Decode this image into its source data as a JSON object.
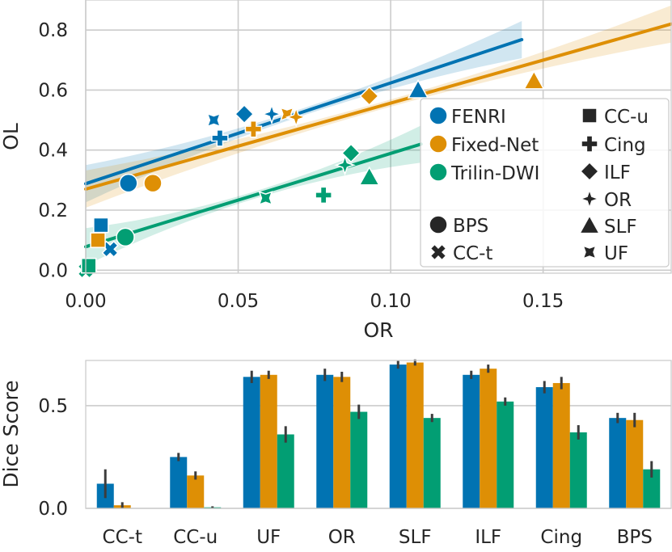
{
  "colors": {
    "fenri": "#0173b2",
    "fixed_net": "#de8f05",
    "trilin_dwi": "#029e73",
    "grid": "#cccccc",
    "text": "#262626"
  },
  "chart_data": [
    {
      "type": "scatter",
      "xlabel": "OR",
      "ylabel": "OL",
      "xlim": [
        0.0,
        0.192
      ],
      "ylim": [
        -0.01,
        0.9
      ],
      "xticks": [
        0.0,
        0.05,
        0.1,
        0.15
      ],
      "xtick_labels": [
        "0.00",
        "0.05",
        "0.10",
        "0.15"
      ],
      "yticks": [
        0.0,
        0.2,
        0.4,
        0.6,
        0.8
      ],
      "ytick_labels": [
        "0.0",
        "0.2",
        "0.4",
        "0.6",
        "0.8"
      ],
      "grid": true,
      "legend_position": "right",
      "method_legend": [
        "FENRI",
        "Fixed-Net",
        "Trilin-DWI"
      ],
      "tract_legend": [
        "CC-u",
        "Cing",
        "ILF",
        "OR",
        "SLF",
        "UF",
        "BPS",
        "CC-t"
      ],
      "regression_lines": [
        {
          "name": "FENRI",
          "x": [
            0.0,
            0.143
          ],
          "y": [
            0.288,
            0.768
          ]
        },
        {
          "name": "Fixed-Net",
          "x": [
            0.0,
            0.192
          ],
          "y": [
            0.27,
            0.82
          ]
        },
        {
          "name": "Trilin-DWI",
          "x": [
            0.0,
            0.11
          ],
          "y": [
            0.078,
            0.42
          ]
        }
      ],
      "series": [
        {
          "name": "FENRI",
          "points": [
            {
              "tract": "CC-t",
              "x": 0.008,
              "y": 0.07
            },
            {
              "tract": "CC-u",
              "x": 0.005,
              "y": 0.15
            },
            {
              "tract": "UF",
              "x": 0.042,
              "y": 0.5
            },
            {
              "tract": "OR",
              "x": 0.061,
              "y": 0.52
            },
            {
              "tract": "SLF",
              "x": 0.109,
              "y": 0.6
            },
            {
              "tract": "ILF",
              "x": 0.052,
              "y": 0.52
            },
            {
              "tract": "Cing",
              "x": 0.044,
              "y": 0.44
            },
            {
              "tract": "BPS",
              "x": 0.014,
              "y": 0.29
            }
          ]
        },
        {
          "name": "Fixed-Net",
          "points": [
            {
              "tract": "CC-t",
              "x": 0.001,
              "y": 0.01
            },
            {
              "tract": "CC-u",
              "x": 0.004,
              "y": 0.1
            },
            {
              "tract": "UF",
              "x": 0.066,
              "y": 0.52
            },
            {
              "tract": "OR",
              "x": 0.069,
              "y": 0.51
            },
            {
              "tract": "SLF",
              "x": 0.147,
              "y": 0.63
            },
            {
              "tract": "ILF",
              "x": 0.093,
              "y": 0.58
            },
            {
              "tract": "Cing",
              "x": 0.055,
              "y": 0.47
            },
            {
              "tract": "BPS",
              "x": 0.022,
              "y": 0.29
            }
          ]
        },
        {
          "name": "Trilin-DWI",
          "points": [
            {
              "tract": "CC-t",
              "x": 0.0,
              "y": 0.0
            },
            {
              "tract": "CC-u",
              "x": 0.001,
              "y": 0.015
            },
            {
              "tract": "UF",
              "x": 0.059,
              "y": 0.24
            },
            {
              "tract": "OR",
              "x": 0.085,
              "y": 0.35
            },
            {
              "tract": "SLF",
              "x": 0.093,
              "y": 0.31
            },
            {
              "tract": "ILF",
              "x": 0.087,
              "y": 0.39
            },
            {
              "tract": "Cing",
              "x": 0.078,
              "y": 0.25
            },
            {
              "tract": "BPS",
              "x": 0.013,
              "y": 0.11
            }
          ]
        }
      ]
    },
    {
      "type": "bar",
      "ylabel": "Dice Score",
      "xlabel": "",
      "ylim": [
        0.0,
        0.72
      ],
      "yticks": [
        0.0,
        0.5
      ],
      "ytick_labels": [
        "0.0",
        "0.5"
      ],
      "grid": true,
      "categories": [
        "CC-t",
        "CC-u",
        "UF",
        "OR",
        "SLF",
        "ILF",
        "Cing",
        "BPS"
      ],
      "series": [
        {
          "name": "FENRI",
          "values": [
            0.12,
            0.25,
            0.64,
            0.65,
            0.7,
            0.65,
            0.59,
            0.44
          ],
          "error": [
            0.07,
            0.02,
            0.03,
            0.03,
            0.02,
            0.02,
            0.03,
            0.025
          ]
        },
        {
          "name": "Fixed-Net",
          "values": [
            0.015,
            0.16,
            0.65,
            0.64,
            0.71,
            0.68,
            0.61,
            0.43
          ],
          "error": [
            0.015,
            0.02,
            0.02,
            0.025,
            0.015,
            0.02,
            0.03,
            0.035
          ]
        },
        {
          "name": "Trilin-DWI",
          "values": [
            0.0,
            0.005,
            0.36,
            0.47,
            0.44,
            0.52,
            0.37,
            0.19
          ],
          "error": [
            0.0,
            0.005,
            0.04,
            0.035,
            0.02,
            0.02,
            0.035,
            0.04
          ]
        }
      ]
    }
  ]
}
